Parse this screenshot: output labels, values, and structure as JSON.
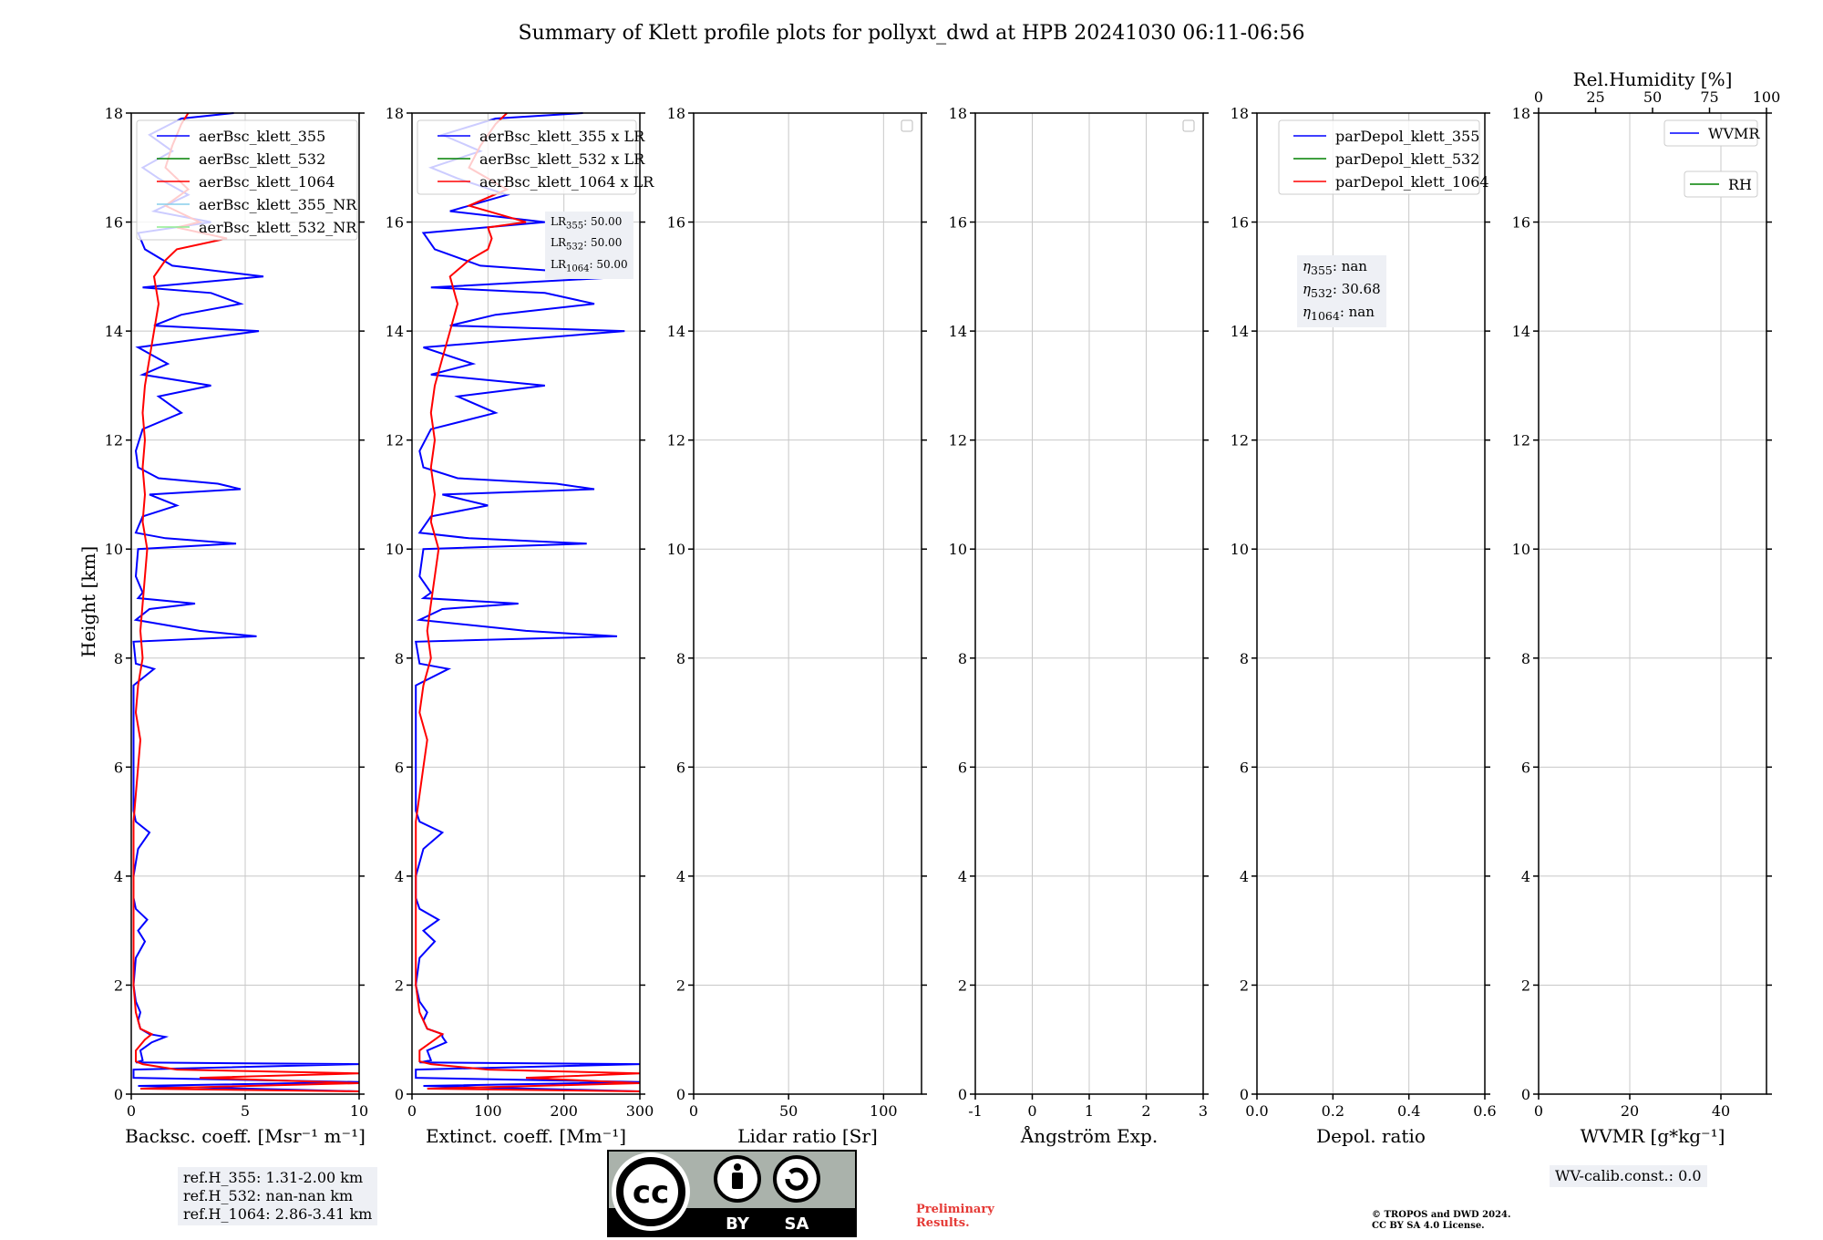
{
  "title": "Summary of Klett profile plots for pollyxt_dwd at HPB 20241030 06:11-06:56",
  "ylabel": "Height [km]",
  "chart_data": [
    {
      "type": "line",
      "id": "backscatter",
      "xlabel": "Backsc. coeff. [Msr⁻¹ m⁻¹]",
      "xlim": [
        0,
        10
      ],
      "xticks": [
        0,
        5,
        10
      ],
      "ylim": [
        0,
        18
      ],
      "yticks": [
        0,
        2,
        4,
        6,
        8,
        10,
        12,
        14,
        16,
        18
      ],
      "legend": [
        "aerBsc_klett_355",
        "aerBsc_klett_532",
        "aerBsc_klett_1064",
        "aerBsc_klett_355_NR",
        "aerBsc_klett_532_NR"
      ],
      "legend_colors": [
        "#0000ff",
        "#008000",
        "#ff0000",
        "#87ceeb",
        "#90ee90"
      ],
      "series": [
        {
          "name": "aerBsc_klett_355",
          "color": "#0000ff",
          "y": [
            0.05,
            0.15,
            0.22,
            0.3,
            0.45,
            0.55,
            0.58,
            0.62,
            0.8,
            0.95,
            1.05,
            1.1,
            1.2,
            1.35,
            1.5,
            1.7,
            2.0,
            2.5,
            2.8,
            3.0,
            3.2,
            3.4,
            3.6,
            4.0,
            4.5,
            4.8,
            5.0,
            5.2,
            5.6,
            6.0,
            7.0,
            7.5,
            7.8,
            7.9,
            8.3,
            8.4,
            8.5,
            8.7,
            8.9,
            9.0,
            9.1,
            9.2,
            9.5,
            10.0,
            10.1,
            10.2,
            10.3,
            10.6,
            10.8,
            11.0,
            11.1,
            11.2,
            11.3,
            11.5,
            11.8,
            12.2,
            12.5,
            12.8,
            13.0,
            13.2,
            13.4,
            13.7,
            14.0,
            14.1,
            14.3,
            14.5,
            14.7,
            14.8,
            15.0,
            15.2,
            15.5,
            15.8,
            16.0,
            16.2,
            16.5,
            16.8,
            17.0,
            17.3,
            17.6,
            17.9,
            18.0
          ],
          "x": [
            10,
            0.3,
            10,
            0.1,
            0.1,
            10,
            0.2,
            0.5,
            0.4,
            0.9,
            1.5,
            0.8,
            0.4,
            0.3,
            0.4,
            0.2,
            0.1,
            0.2,
            0.6,
            0.3,
            0.7,
            0.2,
            0.1,
            0.1,
            0.3,
            0.8,
            0.2,
            0.1,
            0.1,
            0.1,
            0.1,
            0.1,
            1.0,
            0.2,
            0.1,
            5.5,
            3.0,
            0.2,
            0.8,
            2.8,
            0.3,
            0.5,
            0.2,
            0.3,
            4.6,
            1.5,
            0.2,
            0.5,
            2.0,
            0.8,
            4.8,
            3.8,
            1.2,
            0.3,
            0.2,
            0.5,
            2.2,
            1.2,
            3.5,
            0.5,
            1.6,
            0.3,
            5.6,
            1.0,
            2.2,
            4.8,
            3.5,
            0.5,
            5.8,
            1.8,
            0.6,
            0.3,
            3.5,
            1.0,
            2.5,
            1.2,
            0.5,
            1.8,
            0.8,
            2.2,
            4.5
          ]
        },
        {
          "name": "aerBsc_klett_1064",
          "color": "#ff0000",
          "y": [
            0.05,
            0.1,
            0.2,
            0.3,
            0.38,
            0.45,
            0.55,
            0.6,
            0.8,
            1.0,
            1.1,
            1.2,
            1.5,
            2.0,
            3.0,
            4.0,
            5.0,
            6.0,
            6.5,
            7.0,
            7.5,
            8.0,
            8.5,
            9.0,
            9.5,
            10.0,
            10.5,
            11.0,
            11.5,
            12.0,
            12.5,
            13.0,
            13.5,
            14.0,
            14.5,
            15.0,
            15.3,
            15.5,
            15.7,
            15.9,
            16.0,
            16.3,
            16.6,
            17.0,
            17.4,
            17.8,
            18.0
          ],
          "x": [
            10,
            0.4,
            10,
            3.0,
            10,
            2.0,
            0.5,
            0.2,
            0.2,
            0.6,
            0.9,
            0.4,
            0.2,
            0.1,
            0.1,
            0.1,
            0.1,
            0.3,
            0.4,
            0.2,
            0.3,
            0.5,
            0.4,
            0.5,
            0.6,
            0.7,
            0.5,
            0.6,
            0.5,
            0.6,
            0.5,
            0.6,
            0.8,
            1.0,
            1.2,
            1.0,
            1.5,
            2.0,
            4.2,
            2.0,
            3.0,
            1.5,
            2.5,
            1.5,
            1.8,
            2.2,
            2.5
          ]
        }
      ],
      "annotation": [
        "ref.H_355: 1.31-2.00 km",
        "ref.H_532: nan-nan km",
        "ref.H_1064: 2.86-3.41 km"
      ]
    },
    {
      "type": "line",
      "id": "extinction",
      "xlabel": "Extinct. coeff. [Mm⁻¹]",
      "xlim": [
        0,
        300
      ],
      "xticks": [
        0,
        100,
        200,
        300
      ],
      "ylim": [
        0,
        18
      ],
      "yticks": [
        0,
        2,
        4,
        6,
        8,
        10,
        12,
        14,
        16,
        18
      ],
      "legend": [
        "aerBsc_klett_355 x LR",
        "aerBsc_klett_532 x LR",
        "aerBsc_klett_1064 x LR"
      ],
      "legend_colors": [
        "#0000ff",
        "#008000",
        "#ff0000"
      ],
      "annotation": {
        "LR355": "50.00",
        "LR532": "50.00",
        "LR1064": "50.00"
      },
      "series": [
        {
          "name": "aerBsc_klett_355 x LR",
          "color": "#0000ff",
          "y": [
            0.05,
            0.15,
            0.22,
            0.3,
            0.45,
            0.55,
            0.58,
            0.62,
            0.8,
            0.95,
            1.05,
            1.1,
            1.2,
            1.35,
            1.5,
            1.7,
            2.0,
            2.5,
            2.8,
            3.0,
            3.2,
            3.4,
            3.6,
            4.0,
            4.5,
            4.8,
            5.0,
            5.2,
            5.6,
            6.0,
            7.0,
            7.5,
            7.8,
            7.9,
            8.3,
            8.4,
            8.5,
            8.7,
            8.9,
            9.0,
            9.1,
            9.2,
            9.5,
            10.0,
            10.1,
            10.2,
            10.3,
            10.6,
            10.8,
            11.0,
            11.1,
            11.2,
            11.3,
            11.5,
            11.8,
            12.2,
            12.5,
            12.8,
            13.0,
            13.2,
            13.4,
            13.7,
            14.0,
            14.1,
            14.3,
            14.5,
            14.7,
            14.8,
            15.0,
            15.2,
            15.5,
            15.8,
            16.0,
            16.2,
            16.5,
            16.8,
            17.0,
            17.3,
            17.6,
            17.9,
            18.0
          ],
          "x": [
            300,
            15,
            300,
            5,
            5,
            300,
            10,
            25,
            20,
            45,
            40,
            40,
            20,
            15,
            20,
            10,
            5,
            10,
            30,
            15,
            35,
            10,
            5,
            5,
            15,
            40,
            10,
            5,
            5,
            5,
            5,
            5,
            48,
            10,
            5,
            270,
            150,
            10,
            40,
            140,
            15,
            25,
            10,
            15,
            230,
            75,
            10,
            25,
            100,
            40,
            240,
            190,
            60,
            15,
            10,
            25,
            110,
            60,
            175,
            25,
            80,
            15,
            280,
            50,
            110,
            240,
            175,
            25,
            290,
            90,
            30,
            15,
            175,
            50,
            125,
            60,
            25,
            90,
            40,
            110,
            225
          ]
        },
        {
          "name": "aerBsc_klett_1064 x LR",
          "color": "#ff0000",
          "y": [
            0.05,
            0.1,
            0.2,
            0.3,
            0.38,
            0.45,
            0.55,
            0.6,
            0.8,
            1.0,
            1.1,
            1.2,
            1.5,
            2.0,
            3.0,
            4.0,
            5.0,
            6.0,
            6.5,
            7.0,
            7.5,
            8.0,
            8.5,
            9.0,
            9.5,
            10.0,
            10.5,
            11.0,
            11.5,
            12.0,
            12.5,
            13.0,
            13.5,
            14.0,
            14.5,
            15.0,
            15.3,
            15.5,
            15.7,
            15.9,
            16.0,
            16.3,
            16.6,
            17.0,
            17.4,
            17.8,
            18.0
          ],
          "x": [
            300,
            20,
            300,
            150,
            300,
            100,
            25,
            10,
            10,
            30,
            40,
            20,
            10,
            5,
            5,
            5,
            5,
            15,
            20,
            10,
            15,
            25,
            20,
            25,
            30,
            35,
            25,
            30,
            25,
            30,
            25,
            30,
            40,
            50,
            60,
            50,
            75,
            100,
            105,
            100,
            150,
            75,
            125,
            75,
            90,
            110,
            125
          ]
        }
      ]
    },
    {
      "type": "line",
      "id": "lidar-ratio",
      "xlabel": "Lidar ratio [Sr]",
      "xlim": [
        0,
        120
      ],
      "xticks": [
        0,
        50,
        100
      ],
      "ylim": [
        0,
        18
      ],
      "yticks": [
        0,
        2,
        4,
        6,
        8,
        10,
        12,
        14,
        16,
        18
      ],
      "series": []
    },
    {
      "type": "line",
      "id": "angstrom",
      "xlabel": "Ångström Exp.",
      "xlim": [
        -1,
        3
      ],
      "xticks": [
        -1,
        0,
        1,
        2,
        3
      ],
      "ylim": [
        0,
        18
      ],
      "yticks": [
        0,
        2,
        4,
        6,
        8,
        10,
        12,
        14,
        16,
        18
      ],
      "series": []
    },
    {
      "type": "line",
      "id": "depol",
      "xlabel": "Depol. ratio",
      "xlim": [
        0,
        0.6
      ],
      "xticks": [
        0.0,
        0.2,
        0.4,
        0.6
      ],
      "xtick_labels": [
        "0.0",
        "0.2",
        "0.4",
        "0.6"
      ],
      "ylim": [
        0,
        18
      ],
      "yticks": [
        0,
        2,
        4,
        6,
        8,
        10,
        12,
        14,
        16,
        18
      ],
      "legend": [
        "parDepol_klett_355",
        "parDepol_klett_532",
        "parDepol_klett_1064"
      ],
      "legend_colors": [
        "#0000ff",
        "#008000",
        "#ff0000"
      ],
      "annotation": {
        "eta355": "nan",
        "eta532": "30.68",
        "eta1064": "nan"
      },
      "series": []
    },
    {
      "type": "line",
      "id": "wvmr",
      "xlabel": "WVMR [g*kg⁻¹]",
      "xlim": [
        0,
        50
      ],
      "xticks": [
        0,
        20,
        40
      ],
      "x2label": "Rel.Humidity [%]",
      "x2lim": [
        0,
        100
      ],
      "x2ticks": [
        0,
        25,
        50,
        75,
        100
      ],
      "ylim": [
        0,
        18
      ],
      "yticks": [
        0,
        2,
        4,
        6,
        8,
        10,
        12,
        14,
        16,
        18
      ],
      "legend": [
        "WVMR",
        "RH"
      ],
      "legend_colors": [
        "#0000ff",
        "#008000"
      ],
      "annotation": "WV-calib.const.: 0.0",
      "series": []
    }
  ],
  "footer": {
    "license_by": "BY",
    "license_sa": "SA",
    "license_cc": "cc",
    "preliminary_line1": "Preliminary",
    "preliminary_line2": "Results.",
    "copyright_line1": "© TROPOS and DWD 2024.",
    "copyright_line2": "CC BY SA 4.0 License."
  }
}
